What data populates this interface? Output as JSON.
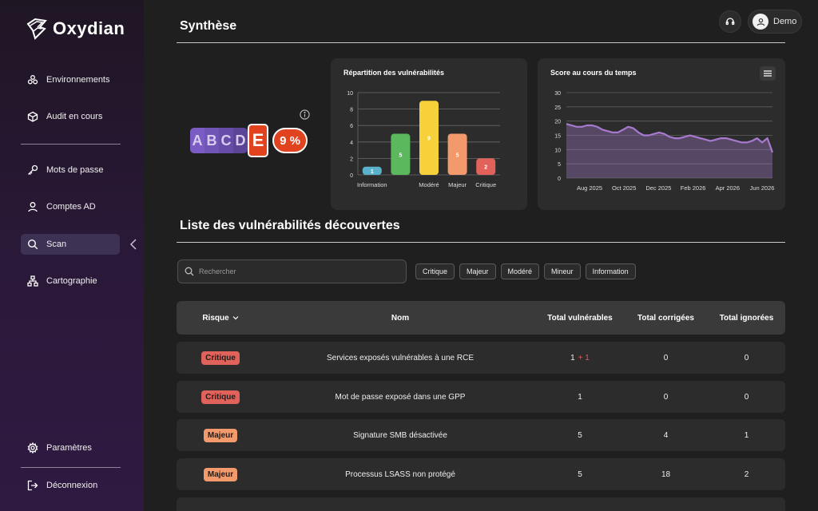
{
  "app": {
    "name": "Oxydian"
  },
  "sidebar": {
    "items_top": [
      {
        "label": "Environnements",
        "icon": "environments-icon"
      },
      {
        "label": "Audit en cours",
        "icon": "cube-icon"
      }
    ],
    "items_mid": [
      {
        "label": "Mots de passe",
        "icon": "key-icon"
      },
      {
        "label": "Comptes AD",
        "icon": "user-icon"
      },
      {
        "label": "Scan",
        "icon": "search-icon",
        "active": true
      },
      {
        "label": "Cartographie",
        "icon": "sitemap-icon"
      }
    ],
    "items_bottom": [
      {
        "label": "Paramètres",
        "icon": "gear-icon"
      },
      {
        "label": "Déconnexion",
        "icon": "logout-icon"
      }
    ]
  },
  "header": {
    "user": "Demo"
  },
  "synthese": {
    "title": "Synthèse",
    "grades": [
      "A",
      "B",
      "C",
      "D"
    ],
    "current_grade": "E",
    "percent": "9 %"
  },
  "charts": {
    "repartition_title": "Répartition des vulnérabilités",
    "score_title": "Score au cours du temps"
  },
  "chart_data": [
    {
      "type": "bar",
      "title": "Répartition des vulnérabilités",
      "categories": [
        "Information",
        "Mineur",
        "Modéré",
        "Majeur",
        "Critique"
      ],
      "x_tick_labels": [
        "Information",
        "",
        "Modéré",
        "Majeur",
        "Critique"
      ],
      "values": [
        1,
        5,
        9,
        5,
        2
      ],
      "colors": [
        "#5ab1cc",
        "#5cb85c",
        "#f6d13a",
        "#f29a6b",
        "#e0625a"
      ],
      "ylim": [
        0,
        10
      ],
      "yticks": [
        0,
        2,
        4,
        6,
        8,
        10
      ],
      "grid": true
    },
    {
      "type": "area",
      "title": "Score au cours du temps",
      "x_tick_labels": [
        "Aug 2025",
        "Oct 2025",
        "Dec 2025",
        "Feb 2026",
        "Apr 2026",
        "Jun 2026"
      ],
      "values": [
        19,
        18.5,
        18,
        18,
        18.5,
        18.5,
        18,
        17,
        16.5,
        16,
        16,
        17,
        18,
        17.5,
        16,
        15,
        15,
        15.5,
        16,
        15.5,
        14.5,
        14,
        14,
        14.5,
        15,
        14.5,
        14,
        13.5,
        13,
        13.5,
        14,
        14,
        13.5,
        13,
        12.5,
        12.5,
        13,
        14,
        12.5,
        14,
        9
      ],
      "ylim": [
        0,
        30
      ],
      "yticks": [
        0,
        5,
        10,
        15,
        20,
        25,
        30
      ],
      "color": "#a77ad0",
      "grid": true
    }
  ],
  "vulns": {
    "title": "Liste des vulnérabilités découvertes",
    "search_placeholder": "Rechercher",
    "filters": [
      "Critique",
      "Majeur",
      "Modéré",
      "Mineur",
      "Information"
    ],
    "columns": {
      "risk": "Risque",
      "name": "Nom",
      "total": "Total vulnérables",
      "fixed": "Total corrigées",
      "ignored": "Total ignorées"
    },
    "rows": [
      {
        "risk": "Critique",
        "color": "#e0625a",
        "name": "Services exposés vulnérables à une RCE",
        "total": "1",
        "delta": "+ 1",
        "fixed": "0",
        "ignored": "0"
      },
      {
        "risk": "Critique",
        "color": "#e0625a",
        "name": "Mot de passe exposé dans une GPP",
        "total": "1",
        "delta": "",
        "fixed": "0",
        "ignored": "0"
      },
      {
        "risk": "Majeur",
        "color": "#f29a6b",
        "name": "Signature SMB désactivée",
        "total": "5",
        "delta": "",
        "fixed": "4",
        "ignored": "1"
      },
      {
        "risk": "Majeur",
        "color": "#f29a6b",
        "name": "Processus LSASS non protégé",
        "total": "5",
        "delta": "",
        "fixed": "18",
        "ignored": "2"
      }
    ]
  }
}
